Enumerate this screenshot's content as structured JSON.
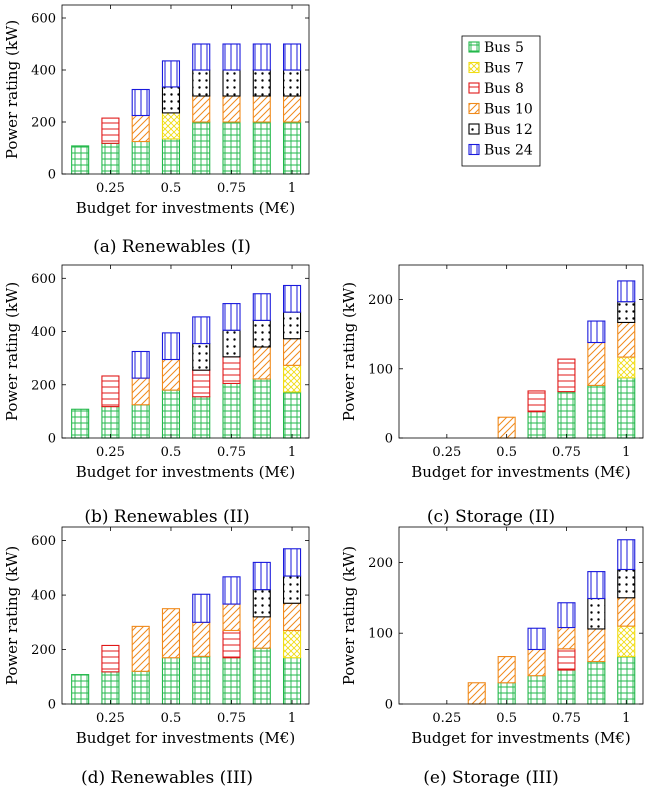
{
  "colors": {
    "Bus 5": "#22b84a",
    "Bus 7": "#f0dc14",
    "Bus 8": "#e01818",
    "Bus 10": "#f08a1c",
    "Bus 12": "#000000",
    "Bus 24": "#1a1adc"
  },
  "legend": [
    "Bus 5",
    "Bus 7",
    "Bus 8",
    "Bus 10",
    "Bus 12",
    "Bus 24"
  ],
  "chart_data": [
    {
      "type": "bar",
      "stacked": true,
      "caption": "(a) Renewables (I)",
      "xlabel": "Budget for investments (M€)",
      "ylabel": "Power rating (kW)",
      "x": [
        0.125,
        0.25,
        0.375,
        0.5,
        0.625,
        0.75,
        0.875,
        1
      ],
      "xticks": [
        0.25,
        0.5,
        0.75,
        1
      ],
      "xtick_labels": [
        "0.25",
        "0.5",
        "0.75",
        "1"
      ],
      "xlim": [
        0.05,
        1.07
      ],
      "ylim": [
        0,
        650
      ],
      "yticks": [
        0,
        200,
        400,
        600
      ],
      "series": [
        {
          "name": "Bus 5",
          "values": [
            108,
            118,
            125,
            135,
            200,
            200,
            200,
            200
          ]
        },
        {
          "name": "Bus 7",
          "values": [
            0,
            0,
            0,
            100,
            0,
            0,
            0,
            0
          ]
        },
        {
          "name": "Bus 8",
          "values": [
            0,
            97,
            0,
            0,
            0,
            0,
            0,
            0
          ]
        },
        {
          "name": "Bus 10",
          "values": [
            0,
            0,
            100,
            0,
            100,
            100,
            100,
            100
          ]
        },
        {
          "name": "Bus 12",
          "values": [
            0,
            0,
            0,
            100,
            100,
            100,
            100,
            100
          ]
        },
        {
          "name": "Bus 24",
          "values": [
            0,
            0,
            100,
            100,
            100,
            100,
            100,
            100
          ]
        }
      ]
    },
    {
      "type": "bar",
      "stacked": true,
      "caption": "(b) Renewables (II)",
      "xlabel": "Budget for investments (M€)",
      "ylabel": "Power rating (kW)",
      "x": [
        0.125,
        0.25,
        0.375,
        0.5,
        0.625,
        0.75,
        0.875,
        1
      ],
      "xticks": [
        0.25,
        0.5,
        0.75,
        1
      ],
      "xtick_labels": [
        "0.25",
        "0.5",
        "0.75",
        "1"
      ],
      "xlim": [
        0.05,
        1.07
      ],
      "ylim": [
        0,
        650
      ],
      "yticks": [
        0,
        200,
        400,
        600
      ],
      "series": [
        {
          "name": "Bus 5",
          "values": [
            108,
            118,
            125,
            180,
            155,
            205,
            222,
            173
          ]
        },
        {
          "name": "Bus 7",
          "values": [
            0,
            0,
            0,
            0,
            0,
            0,
            0,
            100
          ]
        },
        {
          "name": "Bus 8",
          "values": [
            0,
            115,
            0,
            0,
            100,
            100,
            0,
            0
          ]
        },
        {
          "name": "Bus 10",
          "values": [
            0,
            0,
            100,
            115,
            0,
            0,
            120,
            100
          ]
        },
        {
          "name": "Bus 12",
          "values": [
            0,
            0,
            0,
            0,
            100,
            100,
            100,
            100
          ]
        },
        {
          "name": "Bus 24",
          "values": [
            0,
            0,
            100,
            100,
            100,
            100,
            100,
            100
          ]
        }
      ]
    },
    {
      "type": "bar",
      "stacked": true,
      "caption": "(c) Storage (II)",
      "xlabel": "Budget for investments (M€)",
      "ylabel": "Power rating (kW)",
      "x": [
        0.125,
        0.25,
        0.375,
        0.5,
        0.625,
        0.75,
        0.875,
        1
      ],
      "xticks": [
        0.25,
        0.5,
        0.75,
        1
      ],
      "xtick_labels": [
        "0.25",
        "0.5",
        "0.75",
        "1"
      ],
      "xlim": [
        0.05,
        1.07
      ],
      "ylim": [
        0,
        250
      ],
      "yticks": [
        0,
        100,
        200
      ],
      "series": [
        {
          "name": "Bus 5",
          "values": [
            0,
            0,
            0,
            0,
            38,
            67,
            76,
            87
          ]
        },
        {
          "name": "Bus 7",
          "values": [
            0,
            0,
            0,
            0,
            0,
            0,
            0,
            30
          ]
        },
        {
          "name": "Bus 8",
          "values": [
            0,
            0,
            0,
            0,
            30,
            47,
            0,
            0
          ]
        },
        {
          "name": "Bus 10",
          "values": [
            0,
            0,
            0,
            30,
            0,
            0,
            62,
            50
          ]
        },
        {
          "name": "Bus 12",
          "values": [
            0,
            0,
            0,
            0,
            0,
            0,
            0,
            30
          ]
        },
        {
          "name": "Bus 24",
          "values": [
            0,
            0,
            0,
            0,
            0,
            0,
            31,
            30
          ]
        }
      ]
    },
    {
      "type": "bar",
      "stacked": true,
      "caption": "(d) Renewables (III)",
      "xlabel": "Budget for investments (M€)",
      "ylabel": "Power rating (kW)",
      "x": [
        0.125,
        0.25,
        0.375,
        0.5,
        0.625,
        0.75,
        0.875,
        1
      ],
      "xticks": [
        0.25,
        0.5,
        0.75,
        1
      ],
      "xtick_labels": [
        "0.25",
        "0.5",
        "0.75",
        "1"
      ],
      "xlim": [
        0.05,
        1.07
      ],
      "ylim": [
        0,
        650
      ],
      "yticks": [
        0,
        200,
        400,
        600
      ],
      "series": [
        {
          "name": "Bus 5",
          "values": [
            108,
            118,
            120,
            170,
            175,
            170,
            205,
            170
          ]
        },
        {
          "name": "Bus 7",
          "values": [
            0,
            0,
            0,
            0,
            0,
            0,
            0,
            100
          ]
        },
        {
          "name": "Bus 8",
          "values": [
            0,
            97,
            0,
            0,
            0,
            100,
            0,
            0
          ]
        },
        {
          "name": "Bus 10",
          "values": [
            0,
            0,
            165,
            180,
            125,
            97,
            115,
            100
          ]
        },
        {
          "name": "Bus 12",
          "values": [
            0,
            0,
            0,
            0,
            0,
            0,
            100,
            100
          ]
        },
        {
          "name": "Bus 24",
          "values": [
            0,
            0,
            0,
            0,
            103,
            100,
            100,
            100
          ]
        }
      ]
    },
    {
      "type": "bar",
      "stacked": true,
      "caption": "(e) Storage (III)",
      "xlabel": "Budget for investments (M€)",
      "ylabel": "Power rating (kW)",
      "x": [
        0.125,
        0.25,
        0.375,
        0.5,
        0.625,
        0.75,
        0.875,
        1
      ],
      "xticks": [
        0.25,
        0.5,
        0.75,
        1
      ],
      "xtick_labels": [
        "0.25",
        "0.5",
        "0.75",
        "1"
      ],
      "xlim": [
        0.05,
        1.07
      ],
      "ylim": [
        0,
        250
      ],
      "yticks": [
        0,
        100,
        200
      ],
      "series": [
        {
          "name": "Bus 5",
          "values": [
            0,
            0,
            0,
            30,
            40,
            48,
            60,
            67
          ]
        },
        {
          "name": "Bus 7",
          "values": [
            0,
            0,
            0,
            0,
            0,
            0,
            0,
            43
          ]
        },
        {
          "name": "Bus 8",
          "values": [
            0,
            0,
            0,
            0,
            0,
            30,
            0,
            0
          ]
        },
        {
          "name": "Bus 10",
          "values": [
            0,
            0,
            30,
            37,
            37,
            30,
            46,
            40
          ]
        },
        {
          "name": "Bus 12",
          "values": [
            0,
            0,
            0,
            0,
            0,
            0,
            43,
            40
          ]
        },
        {
          "name": "Bus 24",
          "values": [
            0,
            0,
            0,
            0,
            30,
            35,
            38,
            42
          ]
        }
      ]
    }
  ]
}
